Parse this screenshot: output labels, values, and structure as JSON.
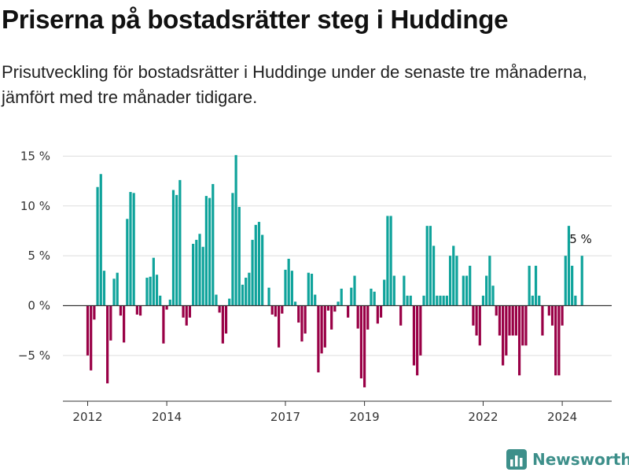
{
  "colors": {
    "positive": "#0fa39b",
    "negative": "#990046",
    "grid": "#dddddd",
    "axis": "#333333",
    "brand": "#3d8f8a"
  },
  "brand": {
    "name": "Newsworthy",
    "icon": "bar-chart-logo-icon"
  },
  "chart_data": {
    "type": "bar",
    "title": "Priserna på bostadsrätter steg i Huddinge",
    "subtitle": "Prisutveckling för bostadsrätter i Huddinge under de senaste tre månaderna, jämfört med tre månader tidigare.",
    "xlabel": "",
    "ylabel": "",
    "ylim": [
      -9.5,
      16
    ],
    "yticks": [
      15,
      10,
      5,
      0,
      -5
    ],
    "ytick_labels": [
      "15 %",
      "10 %",
      "5 %",
      "0 %",
      "−5 %"
    ],
    "xticks": [
      2012,
      2014,
      2017,
      2019,
      2022,
      2024
    ],
    "x_start": 2012,
    "step": 0.08333,
    "grid": true,
    "annotation": {
      "label": "5 %",
      "value": 5
    },
    "values": [
      -5,
      -6.5,
      -1.4,
      11.9,
      13.2,
      3.5,
      -7.8,
      -3.5,
      2.7,
      3.3,
      -1,
      -3.7,
      8.7,
      11.4,
      11.3,
      -0.9,
      -1,
      0,
      2.8,
      2.9,
      4.8,
      3.1,
      1,
      -3.8,
      -0.4,
      0.6,
      11.6,
      11.1,
      12.6,
      -1.2,
      -2,
      -1.2,
      6.2,
      6.6,
      7.2,
      5.9,
      11,
      10.8,
      12.2,
      1.1,
      -0.7,
      -3.8,
      -2.8,
      0.7,
      11.3,
      15.1,
      9.9,
      2.1,
      2.8,
      3.3,
      6.6,
      8.1,
      8.4,
      7.1,
      0,
      1.8,
      -0.9,
      -1.1,
      -4.2,
      -0.8,
      3.6,
      4.7,
      3.5,
      0.4,
      -1.7,
      -3.6,
      -2.8,
      3.3,
      3.2,
      1.1,
      -6.7,
      -4.8,
      -4.2,
      -0.5,
      -2.4,
      -0.6,
      0.4,
      1.7,
      0,
      -1.2,
      1.8,
      3,
      -2.3,
      -7.3,
      -8.2,
      -2.4,
      1.7,
      1.4,
      -1.8,
      -1.2,
      2.6,
      9,
      9,
      3,
      0,
      -2,
      3,
      1,
      1,
      -6,
      -7,
      -5,
      1,
      8,
      8,
      6,
      1,
      1,
      1,
      1,
      5,
      6,
      5,
      0,
      3,
      3,
      4,
      -2,
      -3,
      -4,
      1,
      3,
      5,
      2,
      -1,
      -3,
      -6,
      -5,
      -3,
      -3,
      -3,
      -7,
      -4,
      -4,
      4,
      1,
      4,
      1,
      -3,
      0,
      -1,
      -2,
      -7,
      -7,
      -2,
      5,
      8,
      4,
      1,
      0,
      5
    ]
  }
}
